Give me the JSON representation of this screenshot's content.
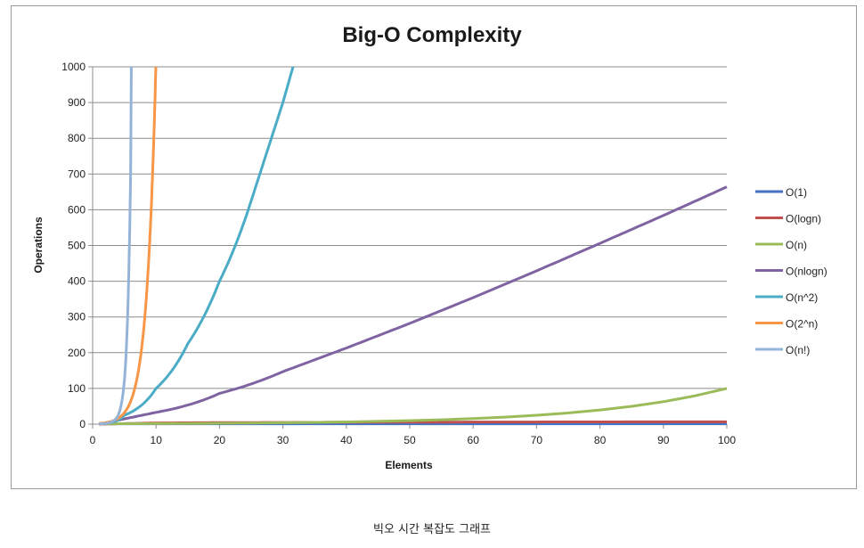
{
  "caption": "빅오 시간 복잡도 그래프",
  "chart_data": {
    "type": "line",
    "title": "Big-O Complexity",
    "xlabel": "Elements",
    "ylabel": "Operations",
    "xlim": [
      0,
      100
    ],
    "ylim": [
      0,
      1000
    ],
    "x_ticks": [
      "0",
      "10",
      "20",
      "30",
      "40",
      "50",
      "60",
      "70",
      "80",
      "90",
      "100"
    ],
    "y_ticks": [
      "0",
      "100",
      "200",
      "300",
      "400",
      "500",
      "600",
      "700",
      "800",
      "900",
      "1000"
    ],
    "grid": "horizontal",
    "legend_position": "right",
    "series": [
      {
        "name": "O(1)",
        "color": "#4472c4",
        "x": [
          1,
          100
        ],
        "y": [
          1,
          1
        ]
      },
      {
        "name": "O(logn)",
        "color": "#c0504d",
        "x": [
          1,
          10,
          20,
          40,
          60,
          80,
          100
        ],
        "y": [
          0,
          3.3,
          4.3,
          5.3,
          5.9,
          6.3,
          6.6
        ]
      },
      {
        "name": "O(n)",
        "color": "#9bbb59",
        "x": [
          1,
          100
        ],
        "y": [
          1,
          100
        ]
      },
      {
        "name": "O(nlogn)",
        "color": "#8064a2",
        "x": [
          1,
          10,
          20,
          30,
          40,
          50,
          60,
          70,
          80,
          90,
          100
        ],
        "y": [
          0,
          33,
          86,
          147,
          213,
          282,
          354,
          429,
          506,
          584,
          664
        ]
      },
      {
        "name": "O(n^2)",
        "color": "#4bacc6",
        "x": [
          1,
          5,
          10,
          15,
          20,
          25,
          30,
          31.6
        ],
        "y": [
          1,
          25,
          100,
          225,
          400,
          625,
          900,
          1000
        ]
      },
      {
        "name": "O(2^n)",
        "color": "#f79646",
        "x": [
          1,
          2,
          3,
          4,
          5,
          6,
          7,
          8,
          9,
          9.97
        ],
        "y": [
          2,
          4,
          8,
          16,
          32,
          64,
          128,
          256,
          512,
          1000
        ]
      },
      {
        "name": "O(n!)",
        "color": "#95b3d7",
        "x": [
          1,
          2,
          3,
          4,
          5,
          6,
          6.1
        ],
        "y": [
          1,
          2,
          6,
          24,
          120,
          720,
          1000
        ]
      }
    ]
  }
}
